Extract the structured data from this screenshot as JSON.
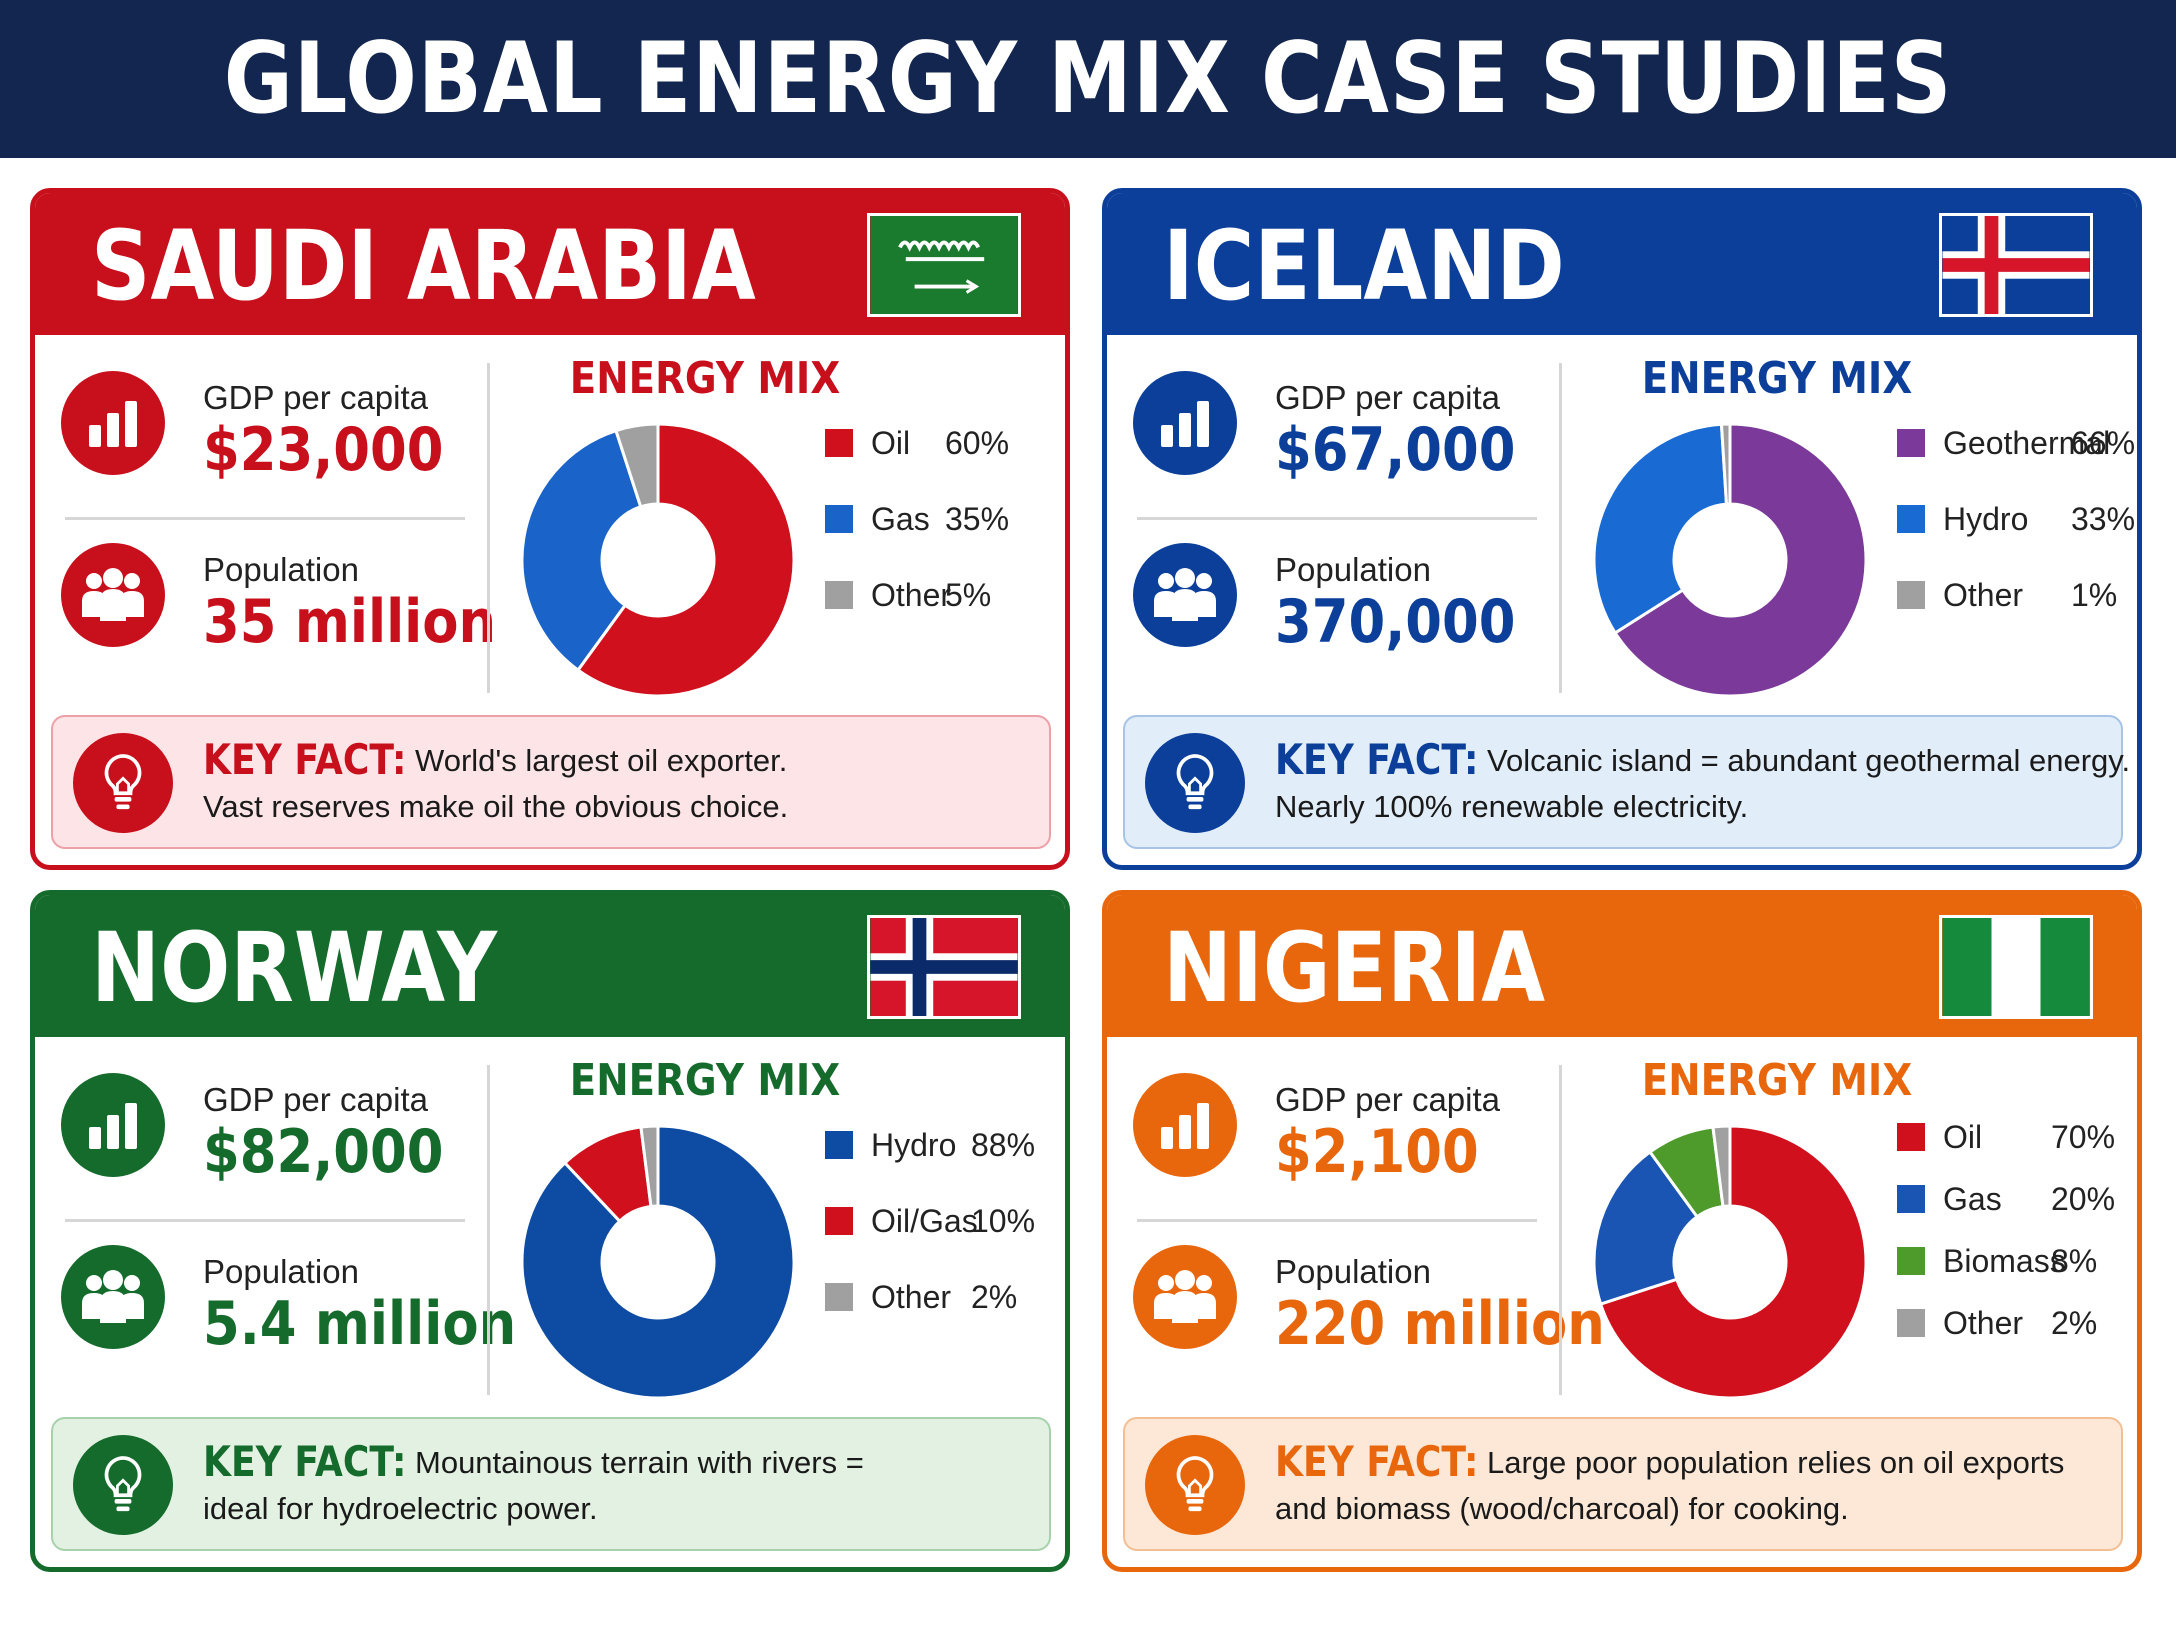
{
  "title": "GLOBAL ENERGY MIX CASE STUDIES",
  "cards": [
    {
      "country": "SAUDI ARABIA",
      "color": "#c8101c",
      "kf_bg": "#fde4e6",
      "kf_border": "#eba1a7",
      "gdp_label": "GDP per capita",
      "gdp_value": "$23,000",
      "pop_label": "Population",
      "pop_value": "35 million",
      "mix_title": "ENERGY MIX",
      "key_label": "KEY FACT:",
      "key_line1": "World's largest oil exporter.",
      "key_line2": "Vast reserves make oil the obvious choice.",
      "legend": [
        {
          "name": "Oil",
          "pct": "60%",
          "color": "#d0101c"
        },
        {
          "name": "Gas",
          "pct": "35%",
          "color": "#1a63c8"
        },
        {
          "name": "Other",
          "pct": "5%",
          "color": "#a0a0a0"
        }
      ]
    },
    {
      "country": "ICELAND",
      "color": "#0b3f9a",
      "kf_bg": "#e1edf9",
      "kf_border": "#a7c3e6",
      "gdp_label": "GDP per capita",
      "gdp_value": "$67,000",
      "pop_label": "Population",
      "pop_value": "370,000",
      "mix_title": "ENERGY MIX",
      "key_label": "KEY FACT:",
      "key_line1": "Volcanic island = abundant geothermal energy.",
      "key_line2": "Nearly 100% renewable electricity.",
      "legend": [
        {
          "name": "Geothermal",
          "pct": "66%",
          "color": "#7b3a9a"
        },
        {
          "name": "Hydro",
          "pct": "33%",
          "color": "#1a6ad4"
        },
        {
          "name": "Other",
          "pct": "1%",
          "color": "#a0a0a0"
        }
      ]
    },
    {
      "country": "NORWAY",
      "color": "#156b2c",
      "kf_bg": "#e2f1e2",
      "kf_border": "#a7d1ab",
      "gdp_label": "GDP per capita",
      "gdp_value": "$82,000",
      "pop_label": "Population",
      "pop_value": "5.4 million",
      "mix_title": "ENERGY MIX",
      "key_label": "KEY FACT:",
      "key_line1": "Mountainous terrain with rivers =",
      "key_line2": "ideal for hydroelectric power.",
      "legend": [
        {
          "name": "Hydro",
          "pct": "88%",
          "color": "#0e4ca4"
        },
        {
          "name": "Oil/Gas",
          "pct": "10%",
          "color": "#d0101c"
        },
        {
          "name": "Other",
          "pct": "2%",
          "color": "#a0a0a0"
        }
      ]
    },
    {
      "country": "NIGERIA",
      "color": "#e8670d",
      "kf_bg": "#fde8d7",
      "kf_border": "#f2bf95",
      "gdp_label": "GDP per capita",
      "gdp_value": "$2,100",
      "pop_label": "Population",
      "pop_value": "220 million",
      "mix_title": "ENERGY MIX",
      "key_label": "KEY FACT:",
      "key_line1": "Large poor population relies on oil exports",
      "key_line2": "and biomass (wood/charcoal) for cooking.",
      "legend": [
        {
          "name": "Oil",
          "pct": "70%",
          "color": "#d0101c"
        },
        {
          "name": "Gas",
          "pct": "20%",
          "color": "#1a55b4"
        },
        {
          "name": "Biomass",
          "pct": "8%",
          "color": "#4e9a2a"
        },
        {
          "name": "Other",
          "pct": "2%",
          "color": "#a0a0a0"
        }
      ]
    }
  ],
  "chart_data": [
    {
      "type": "pie",
      "title": "ENERGY MIX",
      "categories": [
        "Oil",
        "Gas",
        "Other"
      ],
      "values": [
        60,
        35,
        5
      ]
    },
    {
      "type": "pie",
      "title": "ENERGY MIX",
      "categories": [
        "Geothermal",
        "Hydro",
        "Other"
      ],
      "values": [
        66,
        33,
        1
      ]
    },
    {
      "type": "pie",
      "title": "ENERGY MIX",
      "categories": [
        "Hydro",
        "Oil/Gas",
        "Other"
      ],
      "values": [
        88,
        10,
        2
      ]
    },
    {
      "type": "pie",
      "title": "ENERGY MIX",
      "categories": [
        "Oil",
        "Gas",
        "Biomass",
        "Other"
      ],
      "values": [
        70,
        20,
        8,
        2
      ]
    }
  ]
}
